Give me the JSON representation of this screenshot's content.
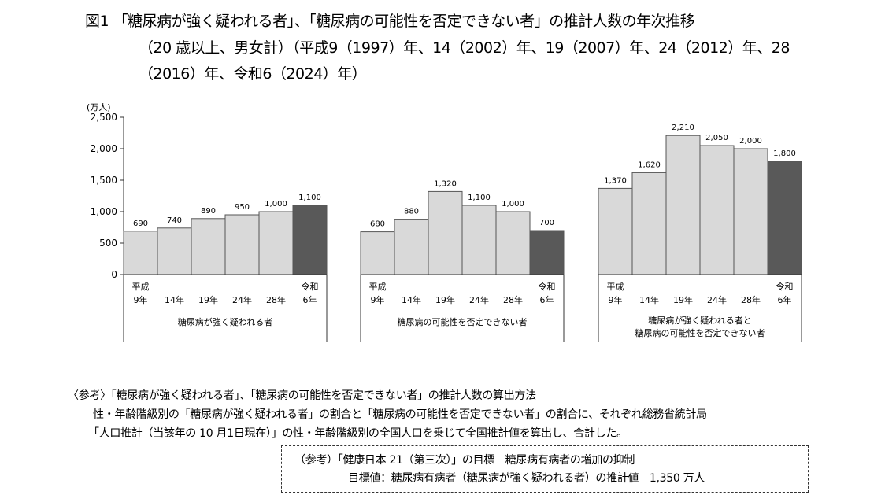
{
  "title": {
    "line1": "図1 「糖尿病が強く疑われる者」、「糖尿病の可能性を否定できない者」の推計人数の年次推移",
    "line2": "（20 歳以上、男女計）（平成9（1997）年、14（2002）年、19（2007）年、24（2012）年、28",
    "line3": "（2016）年、令和6（2024）年）"
  },
  "chart_data": {
    "type": "bar",
    "unit_label": "(万人)",
    "ylim": [
      0,
      2500
    ],
    "yticks": [
      "0",
      "500",
      "1,000",
      "1,500",
      "2,000",
      "2,500"
    ],
    "ytick_values": [
      0,
      500,
      1000,
      1500,
      2000,
      2500
    ],
    "categories": [
      [
        "平成",
        "9年"
      ],
      [
        "",
        "14年"
      ],
      [
        "",
        "19年"
      ],
      [
        "",
        "24年"
      ],
      [
        "",
        "28年"
      ],
      [
        "令和",
        "6年"
      ]
    ],
    "groups": [
      {
        "name": "糖尿病が強く疑われる者",
        "values": [
          690,
          740,
          890,
          950,
          1000,
          1100
        ],
        "labels": [
          "690",
          "740",
          "890",
          "950",
          "1,000",
          "1,100"
        ]
      },
      {
        "name": "糖尿病の可能性を否定できない者",
        "values": [
          680,
          880,
          1320,
          1100,
          1000,
          700
        ],
        "labels": [
          "680",
          "880",
          "1,320",
          "1,100",
          "1,000",
          "700"
        ]
      },
      {
        "name": "糖尿病が強く疑われる者と\n糖尿病の可能性を否定できない者",
        "values": [
          1370,
          1620,
          2210,
          2050,
          2000,
          1800
        ],
        "labels": [
          "1,370",
          "1,620",
          "2,210",
          "2,050",
          "2,000",
          "1,800"
        ]
      }
    ],
    "colors": {
      "past": "#d9d9d9",
      "latest": "#595959"
    }
  },
  "notes": {
    "line1": "〈参考〉「糖尿病が強く疑われる者」、「糖尿病の可能性を否定できない者」の推計人数の算出方法",
    "line2": "性・年齢階級別の「糖尿病が強く疑われる者」の割合と「糖尿病の可能性を否定できない者」の割合に、それぞれ総務省統計局",
    "line3": "「人口推計（当該年の 10 月1日現在）」の性・年齢階級別の全国人口を乗じて全国推計値を算出し、合計した。"
  },
  "box": {
    "line1": "（参考）「健康日本 21（第三次）」の目標　糖尿病有病者の増加の抑制",
    "line2": "目標値：糖尿病有病者（糖尿病が強く疑われる者）の推計値　1,350 万人"
  }
}
